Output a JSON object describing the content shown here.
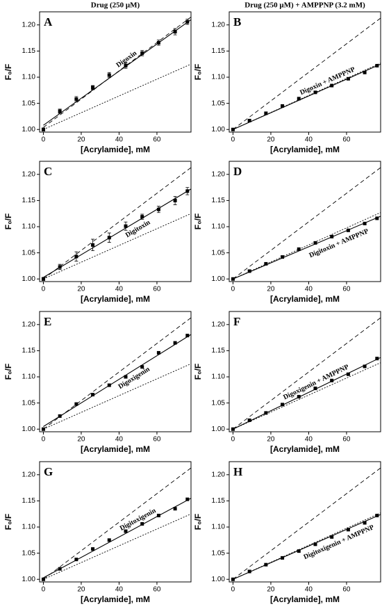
{
  "column_titles": [
    "Drug (250 μM)",
    "Drug (250 μM) + AMPPNP (3.2 mM)"
  ],
  "chart_data": [
    {
      "type": "scatter",
      "panel_label": "A",
      "annotation": "Digoxin",
      "x_label": "[Acrylamide], mM",
      "y_label": "F₀/F",
      "x": [
        0,
        8.7,
        17.4,
        26.1,
        34.8,
        43.5,
        52.2,
        60.9,
        69.6,
        76.1
      ],
      "series": [
        {
          "color": "#000000",
          "values": [
            1.0,
            1.035,
            1.058,
            1.08,
            1.104,
            1.122,
            1.146,
            1.166,
            1.187,
            1.206
          ],
          "errors": [
            0.003,
            0.004,
            0.005,
            0.004,
            0.005,
            0.005,
            0.005,
            0.005,
            0.006,
            0.005
          ]
        }
      ],
      "lines": [
        {
          "style": "solid",
          "x": [
            0,
            78
          ],
          "values": [
            1.008,
            1.21
          ]
        },
        {
          "style": "dashed",
          "x": [
            0,
            78
          ],
          "values": [
            1.004,
            1.215
          ]
        },
        {
          "style": "dotted",
          "x": [
            0,
            78
          ],
          "values": [
            1.0,
            1.125
          ]
        }
      ],
      "xlim": [
        -2,
        78
      ],
      "ylim": [
        0.995,
        1.225
      ],
      "xticks": [
        0,
        20,
        40,
        60
      ],
      "yticks": [
        {
          "value": 1.0,
          "label": "1.00"
        },
        {
          "value": 1.05,
          "label": "1.05"
        },
        {
          "value": 1.1,
          "label": "1.10"
        },
        {
          "value": 1.15,
          "label": "1.15"
        },
        {
          "value": 1.2,
          "label": "1.20"
        }
      ]
    },
    {
      "type": "scatter",
      "panel_label": "B",
      "annotation": "Digoxin + AMPPNP",
      "x_label": "[Acrylamide], mM",
      "y_label": "F₀/F",
      "x": [
        0,
        8.7,
        17.4,
        26.1,
        34.8,
        43.5,
        52.2,
        60.9,
        69.6,
        76.1
      ],
      "series": [
        {
          "color": "#000000",
          "values": [
            1.0,
            1.017,
            1.031,
            1.045,
            1.059,
            1.071,
            1.084,
            1.097,
            1.109,
            1.122
          ]
        }
      ],
      "lines": [
        {
          "style": "solid",
          "x": [
            0,
            78
          ],
          "values": [
            1.0,
            1.125
          ]
        },
        {
          "style": "dashed",
          "x": [
            0,
            78
          ],
          "values": [
            1.0,
            1.213
          ]
        },
        {
          "style": "dotted",
          "x": [
            0,
            78
          ],
          "values": [
            1.0,
            1.127
          ]
        }
      ],
      "xlim": [
        -2,
        78
      ],
      "ylim": [
        0.995,
        1.225
      ],
      "xticks": [
        0,
        20,
        40,
        60
      ],
      "yticks": [
        {
          "value": 1.0,
          "label": "1.00"
        },
        {
          "value": 1.05,
          "label": "1.05"
        },
        {
          "value": 1.1,
          "label": "1.10"
        },
        {
          "value": 1.15,
          "label": "1.15"
        },
        {
          "value": 1.2,
          "label": "1.20"
        }
      ]
    },
    {
      "type": "scatter",
      "panel_label": "C",
      "annotation": "Digitoxin",
      "x_label": "[Acrylamide], mM",
      "y_label": "F₀/F",
      "x": [
        0,
        8.7,
        17.4,
        26.1,
        34.8,
        43.5,
        52.2,
        60.9,
        69.6,
        76.1
      ],
      "series": [
        {
          "color": "#000000",
          "values": [
            1.0,
            1.023,
            1.043,
            1.065,
            1.079,
            1.101,
            1.119,
            1.133,
            1.15,
            1.168
          ],
          "errors": [
            0.003,
            0.005,
            0.009,
            0.011,
            0.009,
            0.008,
            0.005,
            0.006,
            0.008,
            0.007
          ]
        }
      ],
      "lines": [
        {
          "style": "solid",
          "x": [
            0,
            78
          ],
          "values": [
            1.003,
            1.172
          ]
        },
        {
          "style": "dashed",
          "x": [
            0,
            78
          ],
          "values": [
            1.0,
            1.213
          ]
        },
        {
          "style": "dotted",
          "x": [
            0,
            78
          ],
          "values": [
            1.0,
            1.125
          ]
        }
      ],
      "xlim": [
        -2,
        78
      ],
      "ylim": [
        0.995,
        1.225
      ],
      "xticks": [
        0,
        20,
        40,
        60
      ],
      "yticks": [
        {
          "value": 1.0,
          "label": "1.00"
        },
        {
          "value": 1.05,
          "label": "1.05"
        },
        {
          "value": 1.1,
          "label": "1.10"
        },
        {
          "value": 1.15,
          "label": "1.15"
        },
        {
          "value": 1.2,
          "label": "1.20"
        }
      ]
    },
    {
      "type": "scatter",
      "panel_label": "D",
      "annotation": "Digitoxin + AMPPNP",
      "x_label": "[Acrylamide], mM",
      "y_label": "F₀/F",
      "x": [
        0,
        8.7,
        17.4,
        26.1,
        34.8,
        43.5,
        52.2,
        60.9,
        69.6,
        76.1
      ],
      "series": [
        {
          "color": "#000000",
          "values": [
            1.0,
            1.015,
            1.029,
            1.042,
            1.057,
            1.069,
            1.081,
            1.093,
            1.106,
            1.116
          ]
        }
      ],
      "lines": [
        {
          "style": "solid",
          "x": [
            0,
            78
          ],
          "values": [
            1.0,
            1.12
          ]
        },
        {
          "style": "dashed",
          "x": [
            0,
            78
          ],
          "values": [
            1.0,
            1.213
          ]
        },
        {
          "style": "dotted",
          "x": [
            0,
            78
          ],
          "values": [
            1.0,
            1.127
          ]
        }
      ],
      "xlim": [
        -2,
        78
      ],
      "ylim": [
        0.995,
        1.225
      ],
      "xticks": [
        0,
        20,
        40,
        60
      ],
      "yticks": [
        {
          "value": 1.0,
          "label": "1.00"
        },
        {
          "value": 1.05,
          "label": "1.05"
        },
        {
          "value": 1.1,
          "label": "1.10"
        },
        {
          "value": 1.15,
          "label": "1.15"
        },
        {
          "value": 1.2,
          "label": "1.20"
        }
      ]
    },
    {
      "type": "scatter",
      "panel_label": "E",
      "annotation": "Digoxigenin",
      "x_label": "[Acrylamide], mM",
      "y_label": "F₀/F",
      "x": [
        0,
        8.7,
        17.4,
        26.1,
        34.8,
        43.5,
        52.2,
        60.9,
        69.6,
        76.1
      ],
      "series": [
        {
          "color": "#000000",
          "values": [
            1.0,
            1.025,
            1.048,
            1.066,
            1.084,
            1.1,
            1.119,
            1.146,
            1.165,
            1.179
          ]
        }
      ],
      "lines": [
        {
          "style": "solid",
          "x": [
            0,
            78
          ],
          "values": [
            1.005,
            1.181
          ]
        },
        {
          "style": "dashed",
          "x": [
            0,
            78
          ],
          "values": [
            1.0,
            1.213
          ]
        },
        {
          "style": "dotted",
          "x": [
            0,
            78
          ],
          "values": [
            1.0,
            1.125
          ]
        }
      ],
      "xlim": [
        -2,
        78
      ],
      "ylim": [
        0.995,
        1.225
      ],
      "xticks": [
        0,
        20,
        40,
        60
      ],
      "yticks": [
        {
          "value": 1.0,
          "label": "1.00"
        },
        {
          "value": 1.05,
          "label": "1.05"
        },
        {
          "value": 1.1,
          "label": "1.10"
        },
        {
          "value": 1.15,
          "label": "1.15"
        },
        {
          "value": 1.2,
          "label": "1.20"
        }
      ]
    },
    {
      "type": "scatter",
      "panel_label": "F",
      "annotation": "Digoxigenin + AMPPNP",
      "x_label": "[Acrylamide], mM",
      "y_label": "F₀/F",
      "x": [
        0,
        8.7,
        17.4,
        26.1,
        34.8,
        43.5,
        52.2,
        60.9,
        69.6,
        76.1
      ],
      "series": [
        {
          "color": "#000000",
          "values": [
            1.0,
            1.017,
            1.031,
            1.047,
            1.062,
            1.078,
            1.093,
            1.105,
            1.12,
            1.135
          ]
        }
      ],
      "lines": [
        {
          "style": "solid",
          "x": [
            0,
            78
          ],
          "values": [
            1.0,
            1.137
          ]
        },
        {
          "style": "dashed",
          "x": [
            0,
            78
          ],
          "values": [
            1.0,
            1.213
          ]
        },
        {
          "style": "dotted",
          "x": [
            0,
            78
          ],
          "values": [
            1.0,
            1.127
          ]
        }
      ],
      "xlim": [
        -2,
        78
      ],
      "ylim": [
        0.995,
        1.225
      ],
      "xticks": [
        0,
        20,
        40,
        60
      ],
      "yticks": [
        {
          "value": 1.0,
          "label": "1.00"
        },
        {
          "value": 1.05,
          "label": "1.05"
        },
        {
          "value": 1.1,
          "label": "1.10"
        },
        {
          "value": 1.15,
          "label": "1.15"
        },
        {
          "value": 1.2,
          "label": "1.20"
        }
      ]
    },
    {
      "type": "scatter",
      "panel_label": "G",
      "annotation": "Digitoxigenin",
      "x_label": "[Acrylamide], mM",
      "y_label": "F₀/F",
      "x": [
        0,
        8.7,
        17.4,
        26.1,
        34.8,
        43.5,
        52.2,
        60.9,
        69.6,
        76.1
      ],
      "series": [
        {
          "color": "#000000",
          "values": [
            1.0,
            1.02,
            1.038,
            1.058,
            1.075,
            1.092,
            1.106,
            1.122,
            1.135,
            1.153
          ]
        }
      ],
      "lines": [
        {
          "style": "solid",
          "x": [
            0,
            78
          ],
          "values": [
            1.003,
            1.155
          ]
        },
        {
          "style": "dashed",
          "x": [
            0,
            78
          ],
          "values": [
            1.0,
            1.213
          ]
        },
        {
          "style": "dotted",
          "x": [
            0,
            78
          ],
          "values": [
            1.0,
            1.125
          ]
        }
      ],
      "xlim": [
        -2,
        78
      ],
      "ylim": [
        0.995,
        1.225
      ],
      "xticks": [
        0,
        20,
        40,
        60
      ],
      "yticks": [
        {
          "value": 1.0,
          "label": "1.00"
        },
        {
          "value": 1.05,
          "label": "1.05"
        },
        {
          "value": 1.1,
          "label": "1.10"
        },
        {
          "value": 1.15,
          "label": "1.15"
        },
        {
          "value": 1.2,
          "label": "1.20"
        }
      ]
    },
    {
      "type": "scatter",
      "panel_label": "H",
      "annotation": "Digitoxigenin + AMPPNP",
      "x_label": "[Acrylamide], mM",
      "y_label": "F₀/F",
      "x": [
        0,
        8.7,
        17.4,
        26.1,
        34.8,
        43.5,
        52.2,
        60.9,
        69.6,
        76.1
      ],
      "series": [
        {
          "color": "#000000",
          "values": [
            1.0,
            1.015,
            1.028,
            1.041,
            1.054,
            1.067,
            1.081,
            1.095,
            1.108,
            1.122
          ]
        }
      ],
      "lines": [
        {
          "style": "solid",
          "x": [
            0,
            78
          ],
          "values": [
            1.0,
            1.124
          ]
        },
        {
          "style": "dashed",
          "x": [
            0,
            78
          ],
          "values": [
            1.0,
            1.213
          ]
        },
        {
          "style": "dotted",
          "x": [
            0,
            78
          ],
          "values": [
            1.0,
            1.127
          ]
        }
      ],
      "xlim": [
        -2,
        78
      ],
      "ylim": [
        0.995,
        1.225
      ],
      "xticks": [
        0,
        20,
        40,
        60
      ],
      "yticks": [
        {
          "value": 1.0,
          "label": "1.00"
        },
        {
          "value": 1.05,
          "label": "1.05"
        },
        {
          "value": 1.1,
          "label": "1.10"
        },
        {
          "value": 1.15,
          "label": "1.15"
        },
        {
          "value": 1.2,
          "label": "1.20"
        }
      ]
    }
  ]
}
